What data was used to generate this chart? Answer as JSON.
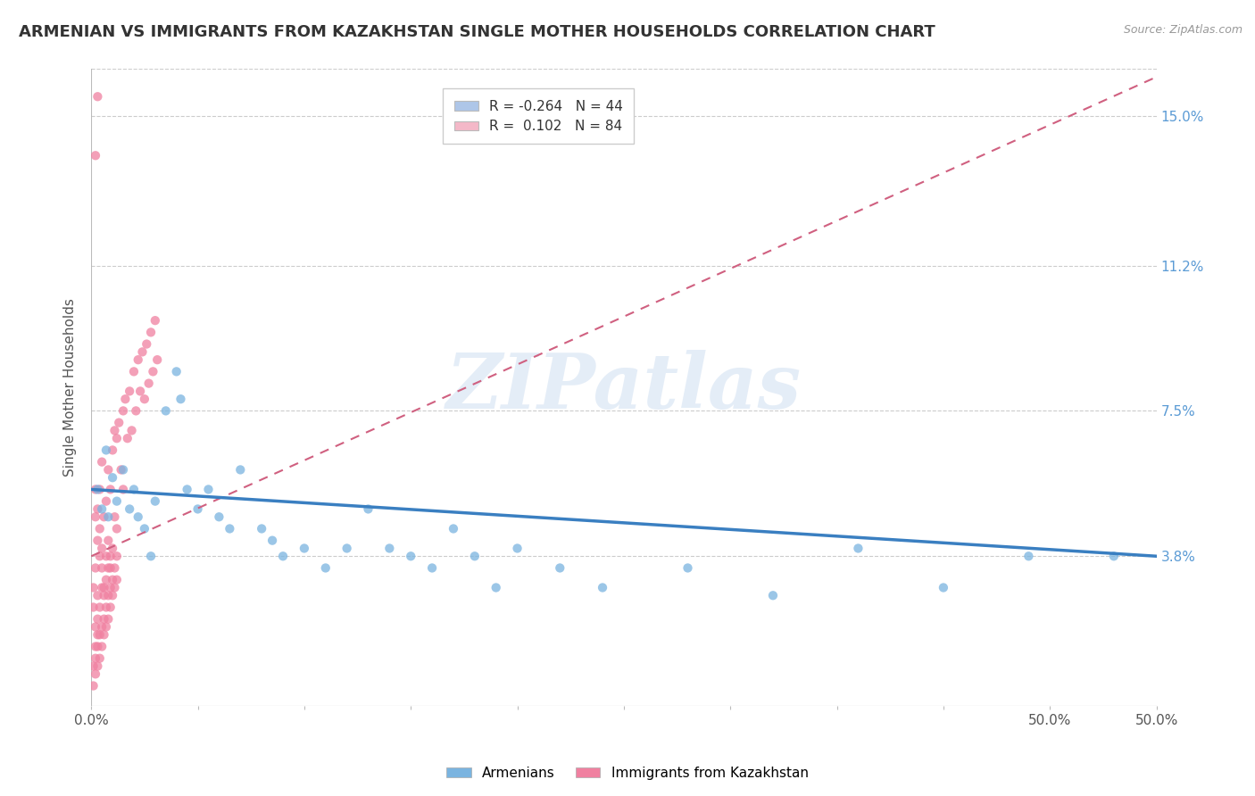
{
  "title": "ARMENIAN VS IMMIGRANTS FROM KAZAKHSTAN SINGLE MOTHER HOUSEHOLDS CORRELATION CHART",
  "source": "Source: ZipAtlas.com",
  "ylabel": "Single Mother Households",
  "xlim": [
    0.0,
    0.5
  ],
  "ylim": [
    0.0,
    0.162
  ],
  "yticks": [
    0.038,
    0.075,
    0.112,
    0.15
  ],
  "ytick_labels": [
    "3.8%",
    "7.5%",
    "11.2%",
    "15.0%"
  ],
  "xticks": [
    0.0,
    0.05,
    0.1,
    0.15,
    0.2,
    0.25,
    0.3,
    0.35,
    0.4,
    0.45,
    0.5
  ],
  "xtick_labels_show": {
    "0.0": "0.0%",
    "0.5": "50.0%"
  },
  "watermark": "ZIPatlas",
  "legend_entries": [
    {
      "label_r": "R = ",
      "label_rv": "-0.264",
      "label_n": "  N = 44",
      "color": "#aec6e8"
    },
    {
      "label_r": "R = ",
      "label_rv": " 0.102",
      "label_n": "  N = 84",
      "color": "#f4b8c8"
    }
  ],
  "armenian_color": "#3a7fc1",
  "kazakh_color": "#e05070",
  "armenian_color_scatter": "#7ab4e0",
  "kazakh_color_scatter": "#f080a0",
  "title_fontsize": 13,
  "axis_label_fontsize": 11,
  "tick_fontsize": 11,
  "legend_fontsize": 11,
  "background_color": "#ffffff",
  "grid_color": "#cccccc",
  "right_tick_color": "#5b9bd5",
  "arm_x": [
    0.003,
    0.005,
    0.007,
    0.008,
    0.01,
    0.012,
    0.015,
    0.018,
    0.02,
    0.022,
    0.025,
    0.028,
    0.03,
    0.035,
    0.04,
    0.042,
    0.045,
    0.05,
    0.055,
    0.06,
    0.065,
    0.07,
    0.08,
    0.085,
    0.09,
    0.1,
    0.11,
    0.12,
    0.13,
    0.14,
    0.15,
    0.16,
    0.17,
    0.18,
    0.19,
    0.2,
    0.22,
    0.24,
    0.28,
    0.32,
    0.36,
    0.4,
    0.44,
    0.48
  ],
  "arm_y": [
    0.055,
    0.05,
    0.065,
    0.048,
    0.058,
    0.052,
    0.06,
    0.05,
    0.055,
    0.048,
    0.045,
    0.038,
    0.052,
    0.075,
    0.085,
    0.078,
    0.055,
    0.05,
    0.055,
    0.048,
    0.045,
    0.06,
    0.045,
    0.042,
    0.038,
    0.04,
    0.035,
    0.04,
    0.05,
    0.04,
    0.038,
    0.035,
    0.045,
    0.038,
    0.03,
    0.04,
    0.035,
    0.03,
    0.035,
    0.028,
    0.04,
    0.03,
    0.038,
    0.038
  ],
  "kaz_x": [
    0.001,
    0.001,
    0.002,
    0.002,
    0.002,
    0.003,
    0.003,
    0.003,
    0.004,
    0.004,
    0.004,
    0.005,
    0.005,
    0.005,
    0.006,
    0.006,
    0.007,
    0.007,
    0.008,
    0.008,
    0.009,
    0.009,
    0.01,
    0.01,
    0.011,
    0.011,
    0.012,
    0.012,
    0.013,
    0.014,
    0.015,
    0.015,
    0.016,
    0.017,
    0.018,
    0.019,
    0.02,
    0.021,
    0.022,
    0.023,
    0.024,
    0.025,
    0.026,
    0.027,
    0.028,
    0.029,
    0.03,
    0.031,
    0.002,
    0.002,
    0.003,
    0.003,
    0.004,
    0.005,
    0.006,
    0.007,
    0.008,
    0.009,
    0.001,
    0.002,
    0.003,
    0.004,
    0.005,
    0.006,
    0.007,
    0.008,
    0.009,
    0.01,
    0.011,
    0.012,
    0.001,
    0.002,
    0.003,
    0.004,
    0.005,
    0.006,
    0.007,
    0.008,
    0.009,
    0.01,
    0.011,
    0.012,
    0.002,
    0.003
  ],
  "kaz_y": [
    0.03,
    0.025,
    0.048,
    0.055,
    0.035,
    0.042,
    0.05,
    0.028,
    0.045,
    0.055,
    0.038,
    0.062,
    0.04,
    0.035,
    0.048,
    0.03,
    0.052,
    0.038,
    0.06,
    0.042,
    0.055,
    0.035,
    0.065,
    0.04,
    0.07,
    0.048,
    0.068,
    0.045,
    0.072,
    0.06,
    0.075,
    0.055,
    0.078,
    0.068,
    0.08,
    0.07,
    0.085,
    0.075,
    0.088,
    0.08,
    0.09,
    0.078,
    0.092,
    0.082,
    0.095,
    0.085,
    0.098,
    0.088,
    0.02,
    0.015,
    0.022,
    0.018,
    0.025,
    0.03,
    0.028,
    0.032,
    0.035,
    0.038,
    0.01,
    0.012,
    0.015,
    0.018,
    0.02,
    0.022,
    0.025,
    0.028,
    0.03,
    0.032,
    0.035,
    0.038,
    0.005,
    0.008,
    0.01,
    0.012,
    0.015,
    0.018,
    0.02,
    0.022,
    0.025,
    0.028,
    0.03,
    0.032,
    0.14,
    0.155
  ],
  "arm_trend_x": [
    0.0,
    0.5
  ],
  "arm_trend_y": [
    0.055,
    0.038
  ],
  "kaz_trend_x": [
    0.0,
    0.5
  ],
  "kaz_trend_y": [
    0.038,
    0.16
  ]
}
